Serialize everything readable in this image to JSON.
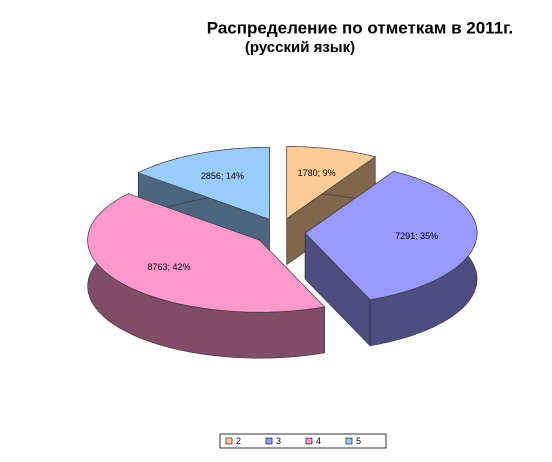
{
  "chart_data": {
    "type": "pie3d",
    "title": "Распределение по отметкам в 2011г.",
    "subtitle": "(русский язык)",
    "categories": [
      "2",
      "3",
      "4",
      "5"
    ],
    "values": [
      1780,
      7291,
      8763,
      2856
    ],
    "value_labels": [
      "1780; 9%",
      "7291; 35%",
      "8763; 42%",
      "2856; 14%"
    ],
    "colors": [
      "#ffcc99",
      "#9999ff",
      "#ff99cc",
      "#99ccff"
    ],
    "legend": "bottom"
  }
}
